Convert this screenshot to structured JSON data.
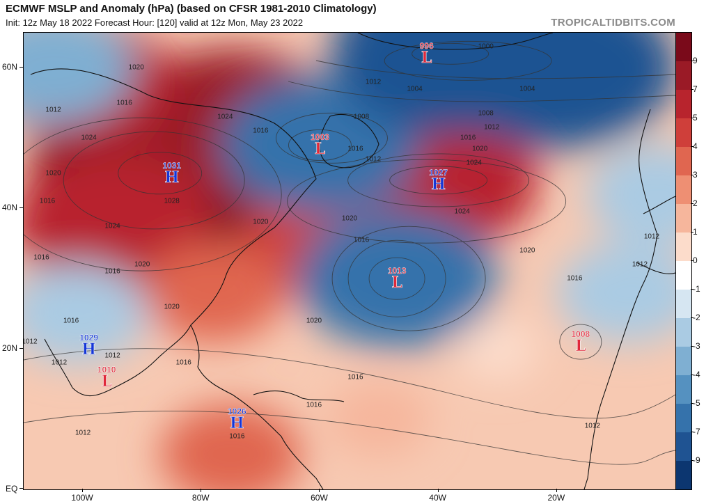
{
  "header": {
    "title": "ECMWF MSLP and Anomaly (hPa) (based on CFSR 1981-2010 Climatology)",
    "subtitle": "Init: 12z May 18 2022   Forecast Hour: [120]   valid at 12z Mon, May 23 2022",
    "credit": "TROPICALTIDBITS.COM"
  },
  "map": {
    "latitude_labels": [
      "60N",
      "40N",
      "20N",
      "EQ"
    ],
    "longitude_labels": [
      "100W",
      "80W",
      "60W",
      "40W",
      "20W"
    ],
    "pressure_systems": [
      {
        "type": "H",
        "value": "1031",
        "lon": -85,
        "lat": 45
      },
      {
        "type": "H",
        "value": "1027",
        "lon": -40,
        "lat": 44
      },
      {
        "type": "L",
        "value": "1003",
        "lon": -60,
        "lat": 49
      },
      {
        "type": "L",
        "value": "996",
        "lon": -42,
        "lat": 62
      },
      {
        "type": "L",
        "value": "1013",
        "lon": -47,
        "lat": 30
      },
      {
        "type": "L",
        "value": "1008",
        "lon": -16,
        "lat": 21
      },
      {
        "type": "H",
        "value": "1029",
        "lon": -99,
        "lat": 20.5
      },
      {
        "type": "L",
        "value": "1010",
        "lon": -96,
        "lat": 16
      },
      {
        "type": "H",
        "value": "1026",
        "lon": -74,
        "lat": 10
      }
    ],
    "isobar_labels": [
      {
        "text": "1020",
        "lon": -91,
        "lat": 60
      },
      {
        "text": "1016",
        "lon": -70,
        "lat": 51
      },
      {
        "text": "1016",
        "lon": -54,
        "lat": 48.5
      },
      {
        "text": "1012",
        "lon": -51,
        "lat": 58
      },
      {
        "text": "1008",
        "lon": -53,
        "lat": 53
      },
      {
        "text": "1012",
        "lon": -51,
        "lat": 47
      },
      {
        "text": "1004",
        "lon": -44,
        "lat": 57
      },
      {
        "text": "1000",
        "lon": -32,
        "lat": 63
      },
      {
        "text": "1004",
        "lon": -25,
        "lat": 57
      },
      {
        "text": "1008",
        "lon": -32,
        "lat": 53.5
      },
      {
        "text": "1012",
        "lon": -31,
        "lat": 51.5
      },
      {
        "text": "1016",
        "lon": -35,
        "lat": 50
      },
      {
        "text": "1020",
        "lon": -33,
        "lat": 48.5
      },
      {
        "text": "1024",
        "lon": -34,
        "lat": 46.5
      },
      {
        "text": "1024",
        "lon": -36,
        "lat": 39.5
      },
      {
        "text": "1020",
        "lon": -55,
        "lat": 38.5
      },
      {
        "text": "1016",
        "lon": -53,
        "lat": 35.5
      },
      {
        "text": "1020",
        "lon": -70,
        "lat": 38
      },
      {
        "text": "1020",
        "lon": -90,
        "lat": 32
      },
      {
        "text": "1024",
        "lon": -95,
        "lat": 37.5
      },
      {
        "text": "1028",
        "lon": -85,
        "lat": 41
      },
      {
        "text": "1024",
        "lon": -99,
        "lat": 50
      },
      {
        "text": "1024",
        "lon": -76,
        "lat": 53
      },
      {
        "text": "1020",
        "lon": -105,
        "lat": 45
      },
      {
        "text": "1016",
        "lon": -106,
        "lat": 41
      },
      {
        "text": "1016",
        "lon": -93,
        "lat": 55
      },
      {
        "text": "1012",
        "lon": -105,
        "lat": 54
      },
      {
        "text": "1016",
        "lon": -107,
        "lat": 33
      },
      {
        "text": "1016",
        "lon": -95,
        "lat": 31
      },
      {
        "text": "1020",
        "lon": -85,
        "lat": 26
      },
      {
        "text": "1016",
        "lon": -102,
        "lat": 24
      },
      {
        "text": "1012",
        "lon": -109,
        "lat": 21
      },
      {
        "text": "1012",
        "lon": -104,
        "lat": 18
      },
      {
        "text": "1012",
        "lon": -95,
        "lat": 19
      },
      {
        "text": "1016",
        "lon": -83,
        "lat": 18
      },
      {
        "text": "1016",
        "lon": -61,
        "lat": 12
      },
      {
        "text": "1016",
        "lon": -54,
        "lat": 16
      },
      {
        "text": "1016",
        "lon": -74,
        "lat": 7.5
      },
      {
        "text": "1012",
        "lon": -100,
        "lat": 8
      },
      {
        "text": "1020",
        "lon": -61,
        "lat": 24
      },
      {
        "text": "1020",
        "lon": -25,
        "lat": 34
      },
      {
        "text": "1016",
        "lon": -17,
        "lat": 30
      },
      {
        "text": "1012",
        "lon": -4,
        "lat": 36
      },
      {
        "text": "1012",
        "lon": -6,
        "lat": 32
      },
      {
        "text": "1012",
        "lon": -14,
        "lat": 9
      }
    ]
  },
  "colorbar": {
    "ticks": [
      "9",
      "7",
      "5",
      "4",
      "3",
      "2",
      "1",
      "0",
      "-1",
      "-2",
      "-3",
      "-4",
      "-5",
      "-7",
      "-9"
    ],
    "colors": [
      "#7a0a1a",
      "#9a1a26",
      "#b8242d",
      "#cf3f3a",
      "#e06650",
      "#ee8f73",
      "#f6b69c",
      "#fcdccb",
      "#ffffff",
      "#d6e6f2",
      "#aacbe3",
      "#7fafd2",
      "#5591c0",
      "#3572ab",
      "#1f5392",
      "#0c3670"
    ]
  },
  "chart_data": {
    "type": "heatmap",
    "title": "ECMWF MSLP and Anomaly (hPa) (based on CFSR 1981-2010 Climatology)",
    "variable": "MSLP anomaly (hPa)",
    "color_levels": [
      -9,
      -7,
      -5,
      -4,
      -3,
      -2,
      -1,
      0,
      1,
      2,
      3,
      4,
      5,
      7,
      9
    ],
    "lon_range": [
      -110,
      0
    ],
    "lat_range": [
      0,
      65
    ],
    "anomaly_centers": [
      {
        "lon": -87,
        "lat": 45,
        "anomaly": 9
      },
      {
        "lon": -75,
        "lat": 52,
        "anomaly": 7
      },
      {
        "lon": -95,
        "lat": 38,
        "anomaly": 6
      },
      {
        "lon": -40,
        "lat": 44,
        "anomaly": 6
      },
      {
        "lon": -60,
        "lat": 35,
        "anomaly": 4
      },
      {
        "lon": -78,
        "lat": 28,
        "anomaly": 3
      },
      {
        "lon": -100,
        "lat": 58,
        "anomaly": 5
      },
      {
        "lon": -75,
        "lat": 5,
        "anomaly": 3
      },
      {
        "lon": -47,
        "lat": 30,
        "anomaly": -6
      },
      {
        "lon": -60,
        "lat": 49,
        "anomaly": -6
      },
      {
        "lon": -38,
        "lat": 62,
        "anomaly": -8
      },
      {
        "lon": -20,
        "lat": 60,
        "anomaly": -8
      },
      {
        "lon": -3,
        "lat": 42,
        "anomaly": -3
      },
      {
        "lon": -8,
        "lat": 28,
        "anomaly": -3
      },
      {
        "lon": -105,
        "lat": 60,
        "anomaly": -4
      },
      {
        "lon": -101,
        "lat": 25,
        "anomaly": -3
      },
      {
        "lon": -30,
        "lat": 20,
        "anomaly": 0
      },
      {
        "lon": -50,
        "lat": 10,
        "anomaly": 1
      }
    ]
  }
}
